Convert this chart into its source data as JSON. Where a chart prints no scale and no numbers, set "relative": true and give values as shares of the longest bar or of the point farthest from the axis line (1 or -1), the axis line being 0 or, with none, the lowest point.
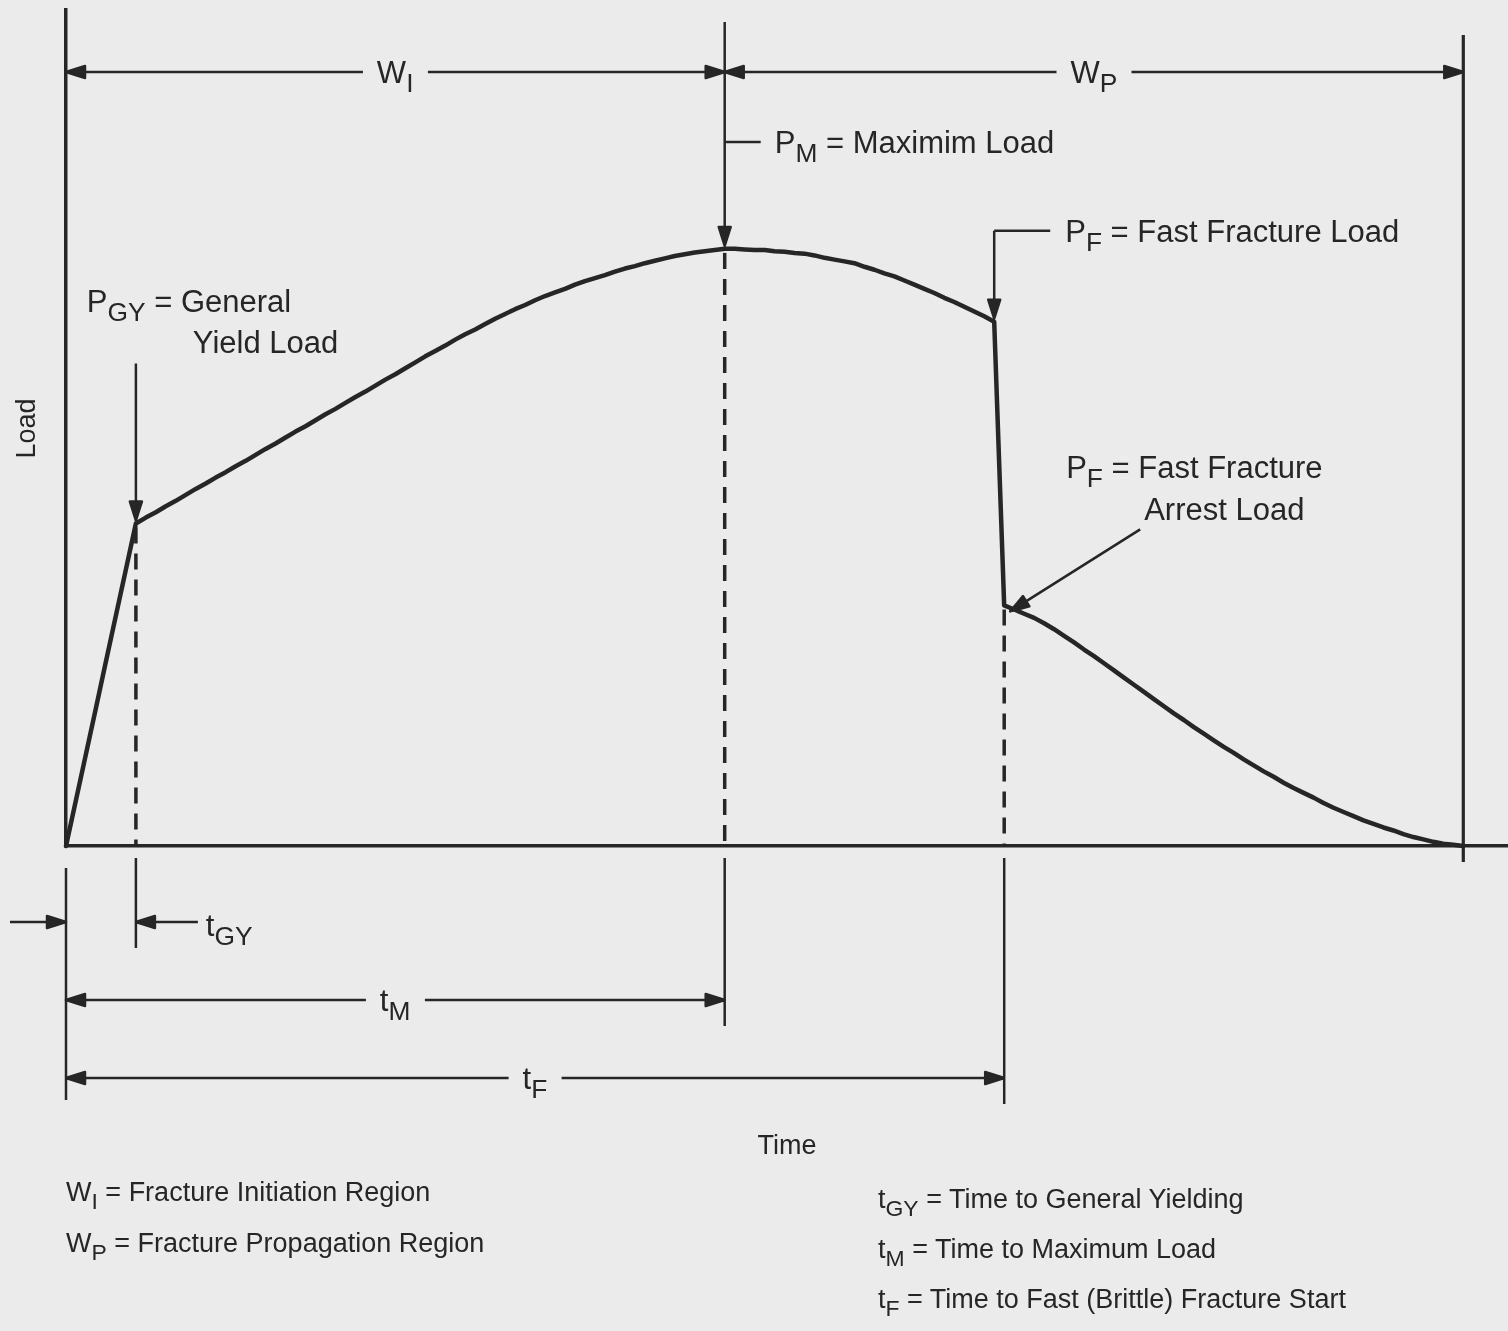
{
  "chart_data": {
    "type": "line",
    "ylabel": "Load",
    "relative": true,
    "categories": [
      null,
      null,
      null,
      null,
      null,
      null,
      null,
      null,
      null,
      null,
      null,
      null,
      null,
      null,
      null,
      null,
      null,
      null,
      null,
      null,
      null,
      null,
      null,
      null,
      null,
      null,
      null,
      null,
      null,
      null,
      null,
      null,
      null,
      null,
      null,
      null,
      null,
      null,
      null,
      null,
      null,
      null,
      null,
      null,
      null,
      null,
      null,
      null,
      null,
      null,
      null,
      null,
      null,
      null,
      null,
      null,
      null,
      null,
      null,
      null,
      null,
      null,
      null,
      null,
      null,
      null,
      null,
      null,
      null,
      null,
      null,
      null,
      null,
      null,
      null,
      null,
      null,
      null,
      null,
      null,
      null,
      null,
      null,
      null,
      null,
      null,
      null,
      null,
      null,
      null,
      null,
      null,
      null,
      null,
      null,
      null,
      null,
      null,
      null,
      null,
      null,
      null,
      null,
      null,
      null,
      null,
      null,
      null,
      null,
      null,
      null,
      null,
      null,
      null,
      null,
      null,
      null,
      null,
      null,
      null,
      null,
      null,
      null,
      null,
      null,
      null,
      null,
      null,
      null,
      null,
      null,
      null,
      null,
      null,
      null,
      null,
      null,
      null,
      null,
      null,
      null
    ],
    "values": [
      0,
      0.077,
      0.154,
      0.231,
      0.309,
      0.386,
      0.463,
      0.54,
      0.55,
      0.559,
      0.569,
      0.578,
      0.588,
      0.598,
      0.607,
      0.617,
      0.626,
      0.636,
      0.645,
      0.655,
      0.665,
      0.674,
      0.684,
      0.694,
      0.703,
      0.713,
      0.723,
      0.732,
      0.742,
      0.752,
      0.761,
      0.771,
      0.781,
      0.79,
      0.8,
      0.81,
      0.82,
      0.829,
      0.838,
      0.848,
      0.857,
      0.865,
      0.874,
      0.883,
      0.891,
      0.899,
      0.906,
      0.914,
      0.921,
      0.927,
      0.933,
      0.94,
      0.946,
      0.951,
      0.956,
      0.962,
      0.967,
      0.971,
      0.976,
      0.98,
      0.984,
      0.988,
      0.991,
      0.994,
      0.996,
      0.998,
      1,
      1,
      0.999,
      0.998,
      0.998,
      0.996,
      0.995,
      0.993,
      0.992,
      0.989,
      0.985,
      0.982,
      0.979,
      0.976,
      0.97,
      0.965,
      0.959,
      0.954,
      0.947,
      0.94,
      0.933,
      0.926,
      0.918,
      0.911,
      0.903,
      0.895,
      0.887,
      0.878,
      0.403,
      0.396,
      0.389,
      0.382,
      0.373,
      0.363,
      0.352,
      0.341,
      0.329,
      0.318,
      0.306,
      0.294,
      0.282,
      0.27,
      0.258,
      0.246,
      0.234,
      0.222,
      0.211,
      0.199,
      0.188,
      0.177,
      0.166,
      0.156,
      0.145,
      0.135,
      0.125,
      0.116,
      0.106,
      0.097,
      0.089,
      0.081,
      0.072,
      0.064,
      0.057,
      0.05,
      0.043,
      0.037,
      0.031,
      0.026,
      0.02,
      0.015,
      0.011,
      0.007,
      0.004,
      0.002,
      0
    ],
    "color": "#262626",
    "marker": "none",
    "line_style": "solid",
    "annotations": [
      "P$_{GY}$ = General Yield Load",
      "P$_{M}$ = Maximim Load",
      "P$_{F}$ = Fast Fracture Load",
      "P$_{F}$ = Fast Fracture Arrest Load",
      "W$_{I}$",
      "W$_{P}$",
      "t$_{GY}$",
      "t$_{M}$",
      "t$_{F}$",
      "Time",
      "W$_{I}$ = Fracture Initiation Region",
      "W$_{P}$ = Fracture Propagation Region",
      "t$_{GY}$ = Time to General Yielding",
      "t$_{M}$ = Time to Maximum Load",
      "t$_{F}$ = Time to Fast (Brittle) Fracture Start"
    ]
  }
}
